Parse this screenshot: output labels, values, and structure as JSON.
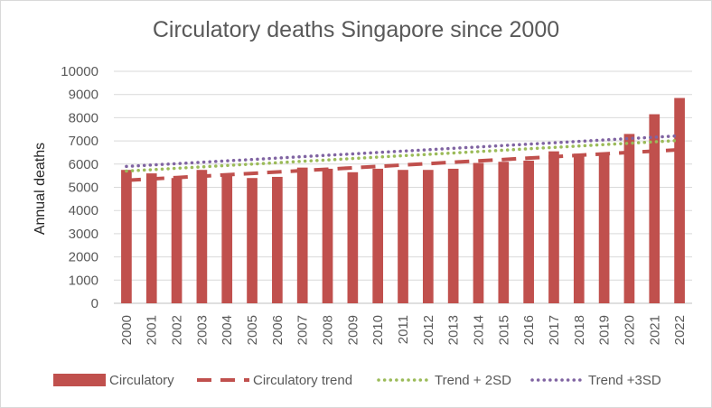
{
  "chart_data": {
    "type": "bar",
    "title": "Circulatory deaths Singapore since 2000",
    "ylabel": "Annual deaths",
    "xlabel": "",
    "ylim": [
      0,
      10000
    ],
    "yticks": [
      0,
      1000,
      2000,
      3000,
      4000,
      5000,
      6000,
      7000,
      8000,
      9000,
      10000
    ],
    "grid": true,
    "legend_position": "bottom",
    "categories": [
      "2000",
      "2001",
      "2002",
      "2003",
      "2004",
      "2005",
      "2006",
      "2007",
      "2008",
      "2009",
      "2010",
      "2011",
      "2012",
      "2013",
      "2014",
      "2015",
      "2016",
      "2017",
      "2018",
      "2019",
      "2020",
      "2021",
      "2022"
    ],
    "series": [
      {
        "name": "Circulatory",
        "kind": "bar",
        "color": "#c0504d",
        "values": [
          5750,
          5600,
          5400,
          5750,
          5550,
          5400,
          5450,
          5850,
          5800,
          5650,
          5800,
          5750,
          5750,
          5800,
          6050,
          6100,
          6150,
          6550,
          6450,
          6500,
          7300,
          8150,
          8850
        ]
      },
      {
        "name": "Circulatory trend",
        "kind": "line",
        "style": "dashed",
        "color": "#c0504d",
        "values": [
          5300,
          5360,
          5420,
          5480,
          5540,
          5600,
          5660,
          5720,
          5780,
          5840,
          5900,
          5960,
          6020,
          6080,
          6140,
          6200,
          6260,
          6320,
          6380,
          6440,
          6500,
          6560,
          6620
        ]
      },
      {
        "name": "Trend + 2SD",
        "kind": "line",
        "style": "dotted",
        "color": "#9bbb59",
        "values": [
          5700,
          5760,
          5820,
          5880,
          5940,
          6000,
          6060,
          6120,
          6180,
          6240,
          6300,
          6360,
          6420,
          6480,
          6540,
          6600,
          6660,
          6720,
          6780,
          6840,
          6900,
          6960,
          7020
        ]
      },
      {
        "name": "Trend +3SD",
        "kind": "line",
        "style": "dotted",
        "color": "#8064a2",
        "values": [
          5900,
          5960,
          6020,
          6080,
          6140,
          6200,
          6260,
          6320,
          6380,
          6440,
          6500,
          6560,
          6620,
          6680,
          6740,
          6800,
          6860,
          6920,
          6980,
          7040,
          7100,
          7160,
          7220
        ]
      }
    ]
  }
}
